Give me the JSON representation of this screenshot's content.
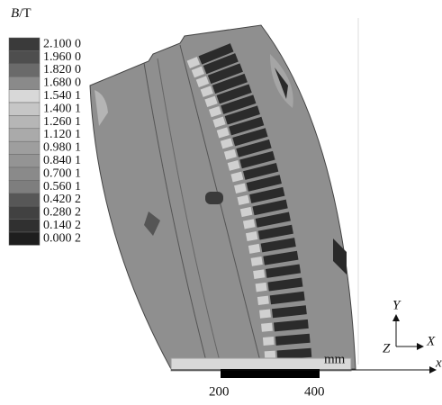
{
  "legend": {
    "symbol": "B",
    "unit": "/T",
    "labels": [
      "2.100 0",
      "1.960 0",
      "1.820 0",
      "1.680 0",
      "1.540 1",
      "1.400 1",
      "1.260 1",
      "1.120 1",
      "0.980 1",
      "0.840 1",
      "0.700 1",
      "0.560 1",
      "0.420 2",
      "0.280 2",
      "0.140 2",
      "0.000 2"
    ]
  },
  "scale_bar": {
    "labels": [
      "200",
      "400"
    ],
    "unit": "mm"
  },
  "triad": {
    "y": "Y",
    "z": "Z",
    "x": "X"
  },
  "axis_label": "x"
}
